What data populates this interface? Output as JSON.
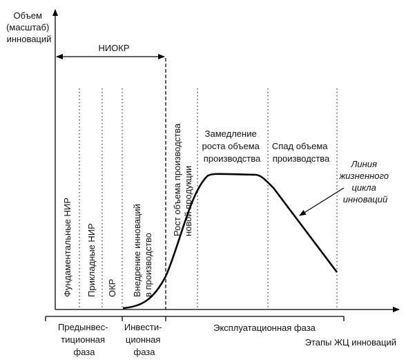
{
  "y_axis_label": [
    "Объем",
    "(масштаб)",
    "инноваций"
  ],
  "x_axis_label": "Этапы ЖЦ инноваций",
  "niokr_label": "НИОКР",
  "stages": {
    "fundamental": "Фундаментальные НИР",
    "applied": "Прикладные НИР",
    "okr": "ОКР",
    "implementation": [
      "Внедрение инноваций",
      "в производство"
    ],
    "growth": [
      "Рост объема производства",
      "новой продукции"
    ],
    "slowdown": [
      "Замедление",
      "роста объема",
      "производства"
    ],
    "decline": [
      "Спад объема",
      "производства"
    ]
  },
  "phases": {
    "pre_investment": [
      "Предынвес-",
      "тиционная",
      "фаза"
    ],
    "investment": [
      "Инвести-",
      "ционная",
      "фаза"
    ],
    "operational": "Эксплуатационная фаза"
  },
  "curve_label": [
    "Линия",
    "жизненного",
    "цикла",
    "инноваций"
  ]
}
